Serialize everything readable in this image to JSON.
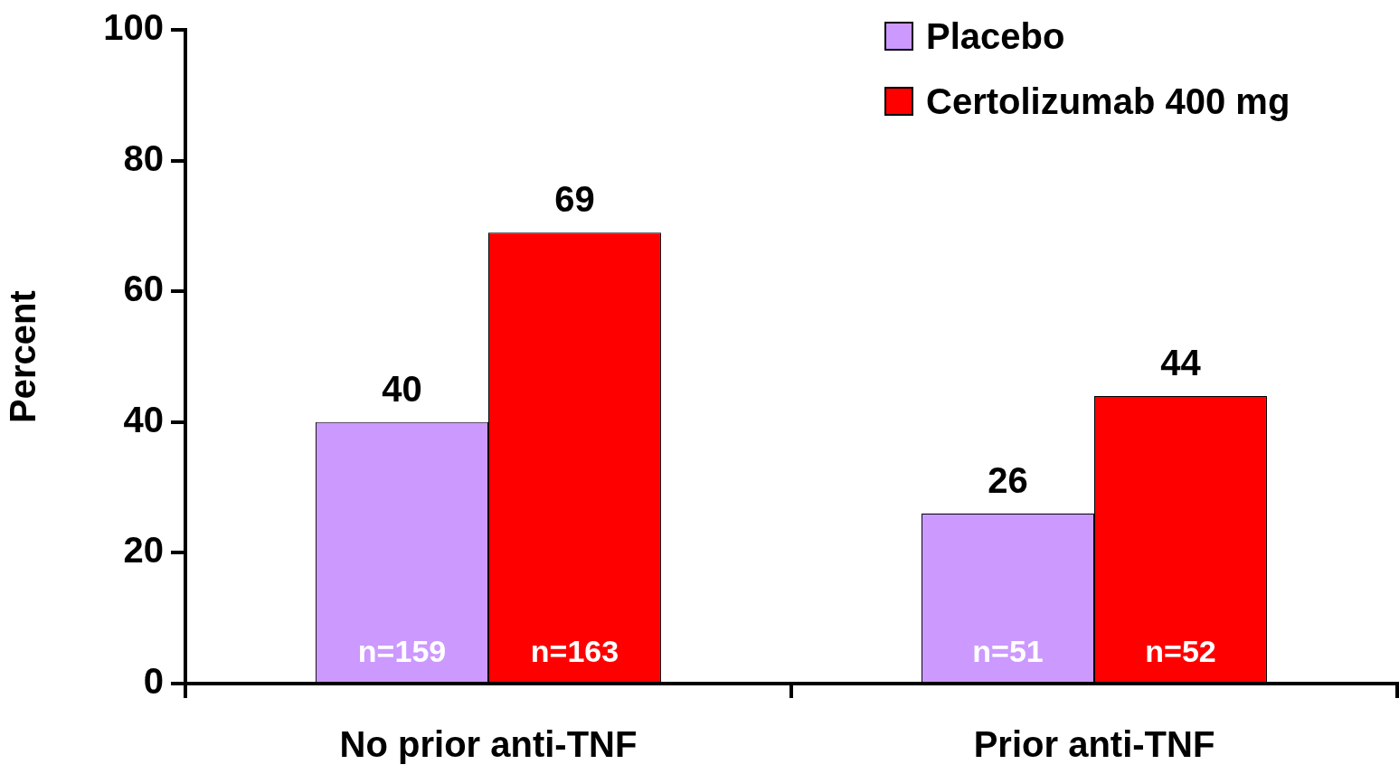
{
  "chart_data": {
    "type": "bar",
    "ylabel": "Percent",
    "categories": [
      "No prior anti-TNF",
      "Prior anti-TNF"
    ],
    "series": [
      {
        "name": "Placebo",
        "color": "#cc99ff",
        "values": [
          40,
          26
        ]
      },
      {
        "name": "Certolizumab 400 mg",
        "color": "#ff0000",
        "values": [
          69,
          44
        ]
      }
    ],
    "ylim": [
      0,
      100
    ],
    "yticks": [
      0,
      20,
      40,
      60,
      80,
      100
    ],
    "grid": false,
    "legend": "top right",
    "data_labels": true,
    "annotations": [
      "n=159",
      "n=163",
      "n=51",
      "n=52"
    ]
  }
}
